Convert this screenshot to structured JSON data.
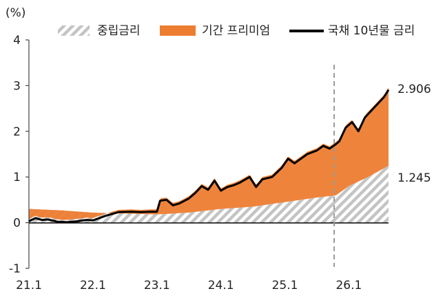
{
  "chart_data": {
    "type": "area",
    "unit_label": "(%)",
    "ylim": [
      -1,
      4
    ],
    "y_ticks": [
      "4",
      "3",
      "2",
      "1",
      "0",
      "-1"
    ],
    "y_tick_values": [
      4,
      3,
      2,
      1,
      0,
      -1
    ],
    "x_tick_labels": [
      "21.1",
      "22.1",
      "23.1",
      "24.1",
      "25.1",
      "26.1"
    ],
    "x_tick_values": [
      2021.0,
      2022.0,
      2023.0,
      2024.0,
      2025.0,
      2026.0
    ],
    "xlim": [
      2021.0,
      2026.62
    ],
    "reference_line_x": 2025.77,
    "legend": {
      "neutral": "중립금리",
      "term": "기간 프리미엄",
      "yield": "국채 10년물 금리"
    },
    "end_labels": {
      "yield": "2.906",
      "neutral": "1.245"
    },
    "colors": {
      "neutral_stripe": "#c4c4c4",
      "term": "#ed7d31",
      "yield": "#000000",
      "axis": "#444444",
      "reference": "#999999"
    },
    "series": [
      {
        "name": "국채 10년물 금리",
        "x": [
          2021.0,
          2021.1,
          2021.2,
          2021.3,
          2021.45,
          2021.6,
          2021.75,
          2021.9,
          2022.0,
          2022.2,
          2022.4,
          2022.6,
          2022.75,
          2022.9,
          2023.0,
          2023.05,
          2023.15,
          2023.25,
          2023.35,
          2023.5,
          2023.6,
          2023.7,
          2023.8,
          2023.9,
          2024.0,
          2024.1,
          2024.2,
          2024.3,
          2024.45,
          2024.55,
          2024.65,
          2024.8,
          2024.95,
          2025.05,
          2025.15,
          2025.25,
          2025.35,
          2025.5,
          2025.6,
          2025.7,
          2025.8,
          2025.85,
          2025.95,
          2026.05,
          2026.15,
          2026.25,
          2026.35,
          2026.45,
          2026.55,
          2026.62
        ],
        "values": [
          0.03,
          0.1,
          0.06,
          0.07,
          0.02,
          0.01,
          0.03,
          0.06,
          0.05,
          0.15,
          0.23,
          0.24,
          0.23,
          0.24,
          0.24,
          0.48,
          0.5,
          0.38,
          0.42,
          0.53,
          0.65,
          0.8,
          0.72,
          0.92,
          0.7,
          0.78,
          0.82,
          0.88,
          1.0,
          0.78,
          0.95,
          1.0,
          1.2,
          1.4,
          1.3,
          1.4,
          1.5,
          1.58,
          1.68,
          1.62,
          1.72,
          1.78,
          2.08,
          2.2,
          2.0,
          2.3,
          2.45,
          2.6,
          2.75,
          2.906
        ]
      },
      {
        "name": "중립금리",
        "x": [
          2021.0,
          2021.5,
          2022.0,
          2022.5,
          2023.0,
          2023.5,
          2024.0,
          2024.5,
          2025.0,
          2025.5,
          2025.8,
          2026.0,
          2026.3,
          2026.62
        ],
        "values": [
          0.3,
          0.27,
          0.22,
          0.2,
          0.18,
          0.22,
          0.3,
          0.35,
          0.45,
          0.55,
          0.6,
          0.8,
          1.0,
          1.245
        ]
      }
    ]
  }
}
